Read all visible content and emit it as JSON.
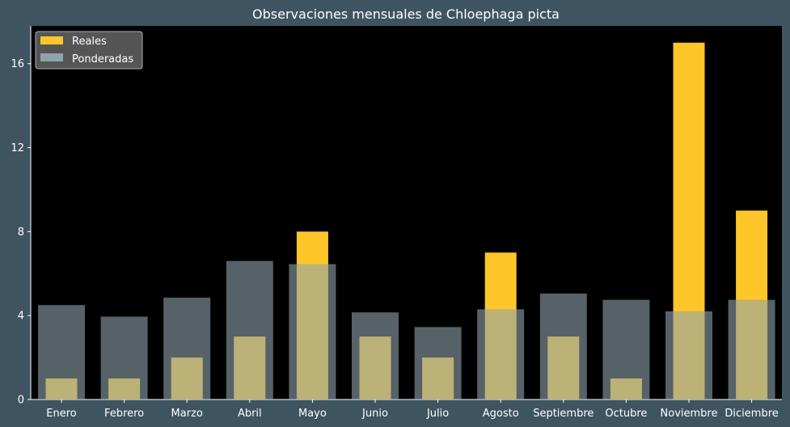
{
  "chart_data": {
    "type": "bar",
    "title": "Observaciones mensuales de Chloephaga picta",
    "xlabel": "",
    "ylabel": "",
    "categories": [
      "Enero",
      "Febrero",
      "Marzo",
      "Abril",
      "Mayo",
      "Junio",
      "Julio",
      "Agosto",
      "Septiembre",
      "Octubre",
      "Noviembre",
      "Diciembre"
    ],
    "series": [
      {
        "name": "Reales",
        "color": "#ffc629",
        "values": [
          1,
          1,
          2,
          3,
          8,
          3,
          2,
          7,
          3,
          1,
          17,
          9
        ]
      },
      {
        "name": "Ponderadas",
        "color": "#8fa3ab",
        "values": [
          4.5,
          3.95,
          4.85,
          6.6,
          6.45,
          4.15,
          3.45,
          4.3,
          5.05,
          4.75,
          4.2,
          4.75
        ]
      }
    ],
    "ylim": [
      0,
      17.8
    ],
    "yticks": [
      0,
      4,
      8,
      12,
      16
    ],
    "legend_position": "top-left",
    "grid": false,
    "plot_background": "#000000",
    "figure_background": "#3e5461"
  }
}
